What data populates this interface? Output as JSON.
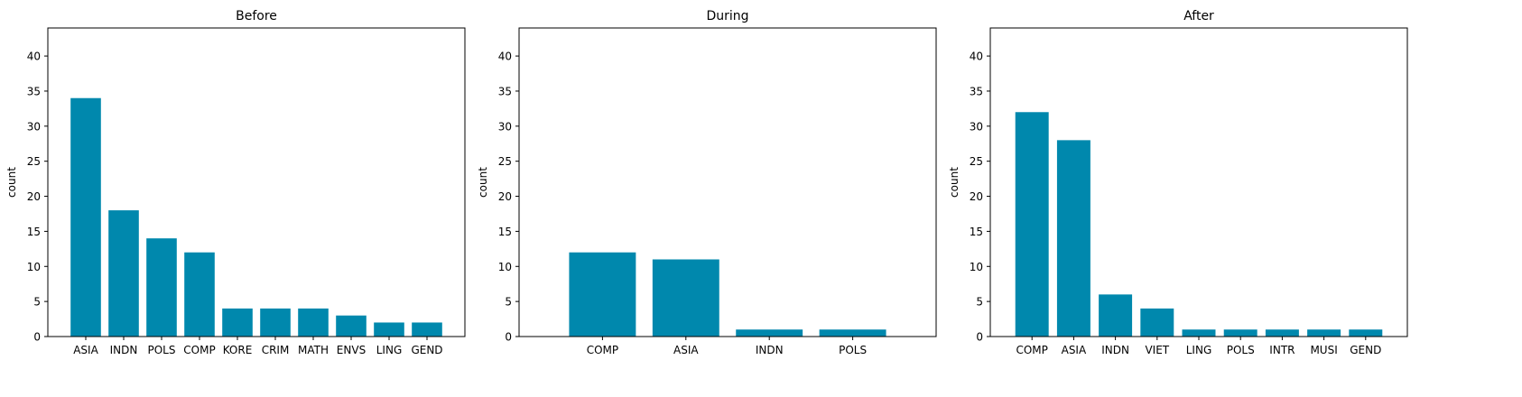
{
  "chart_data": [
    {
      "type": "bar",
      "title": "Before",
      "xlabel": "",
      "ylabel": "count",
      "ylim": [
        0,
        44
      ],
      "yticks": [
        0,
        5,
        10,
        15,
        20,
        25,
        30,
        35,
        40
      ],
      "grid": false,
      "bar_color": "#0088ad",
      "categories": [
        "ASIA",
        "INDN",
        "POLS",
        "COMP",
        "KORE",
        "CRIM",
        "MATH",
        "ENVS",
        "LING",
        "GEND"
      ],
      "values": [
        34,
        18,
        14,
        12,
        4,
        4,
        4,
        3,
        2,
        2
      ]
    },
    {
      "type": "bar",
      "title": "During",
      "xlabel": "",
      "ylabel": "count",
      "ylim": [
        0,
        44
      ],
      "yticks": [
        0,
        5,
        10,
        15,
        20,
        25,
        30,
        35,
        40
      ],
      "grid": false,
      "bar_color": "#0088ad",
      "categories": [
        "COMP",
        "ASIA",
        "INDN",
        "POLS"
      ],
      "values": [
        12,
        11,
        1,
        1
      ]
    },
    {
      "type": "bar",
      "title": "After",
      "xlabel": "",
      "ylabel": "count",
      "ylim": [
        0,
        44
      ],
      "yticks": [
        0,
        5,
        10,
        15,
        20,
        25,
        30,
        35,
        40
      ],
      "grid": false,
      "bar_color": "#0088ad",
      "categories": [
        "COMP",
        "ASIA",
        "INDN",
        "VIET",
        "LING",
        "POLS",
        "INTR",
        "MUSI",
        "GEND"
      ],
      "values": [
        32,
        28,
        6,
        4,
        1,
        1,
        1,
        1,
        1
      ]
    }
  ]
}
